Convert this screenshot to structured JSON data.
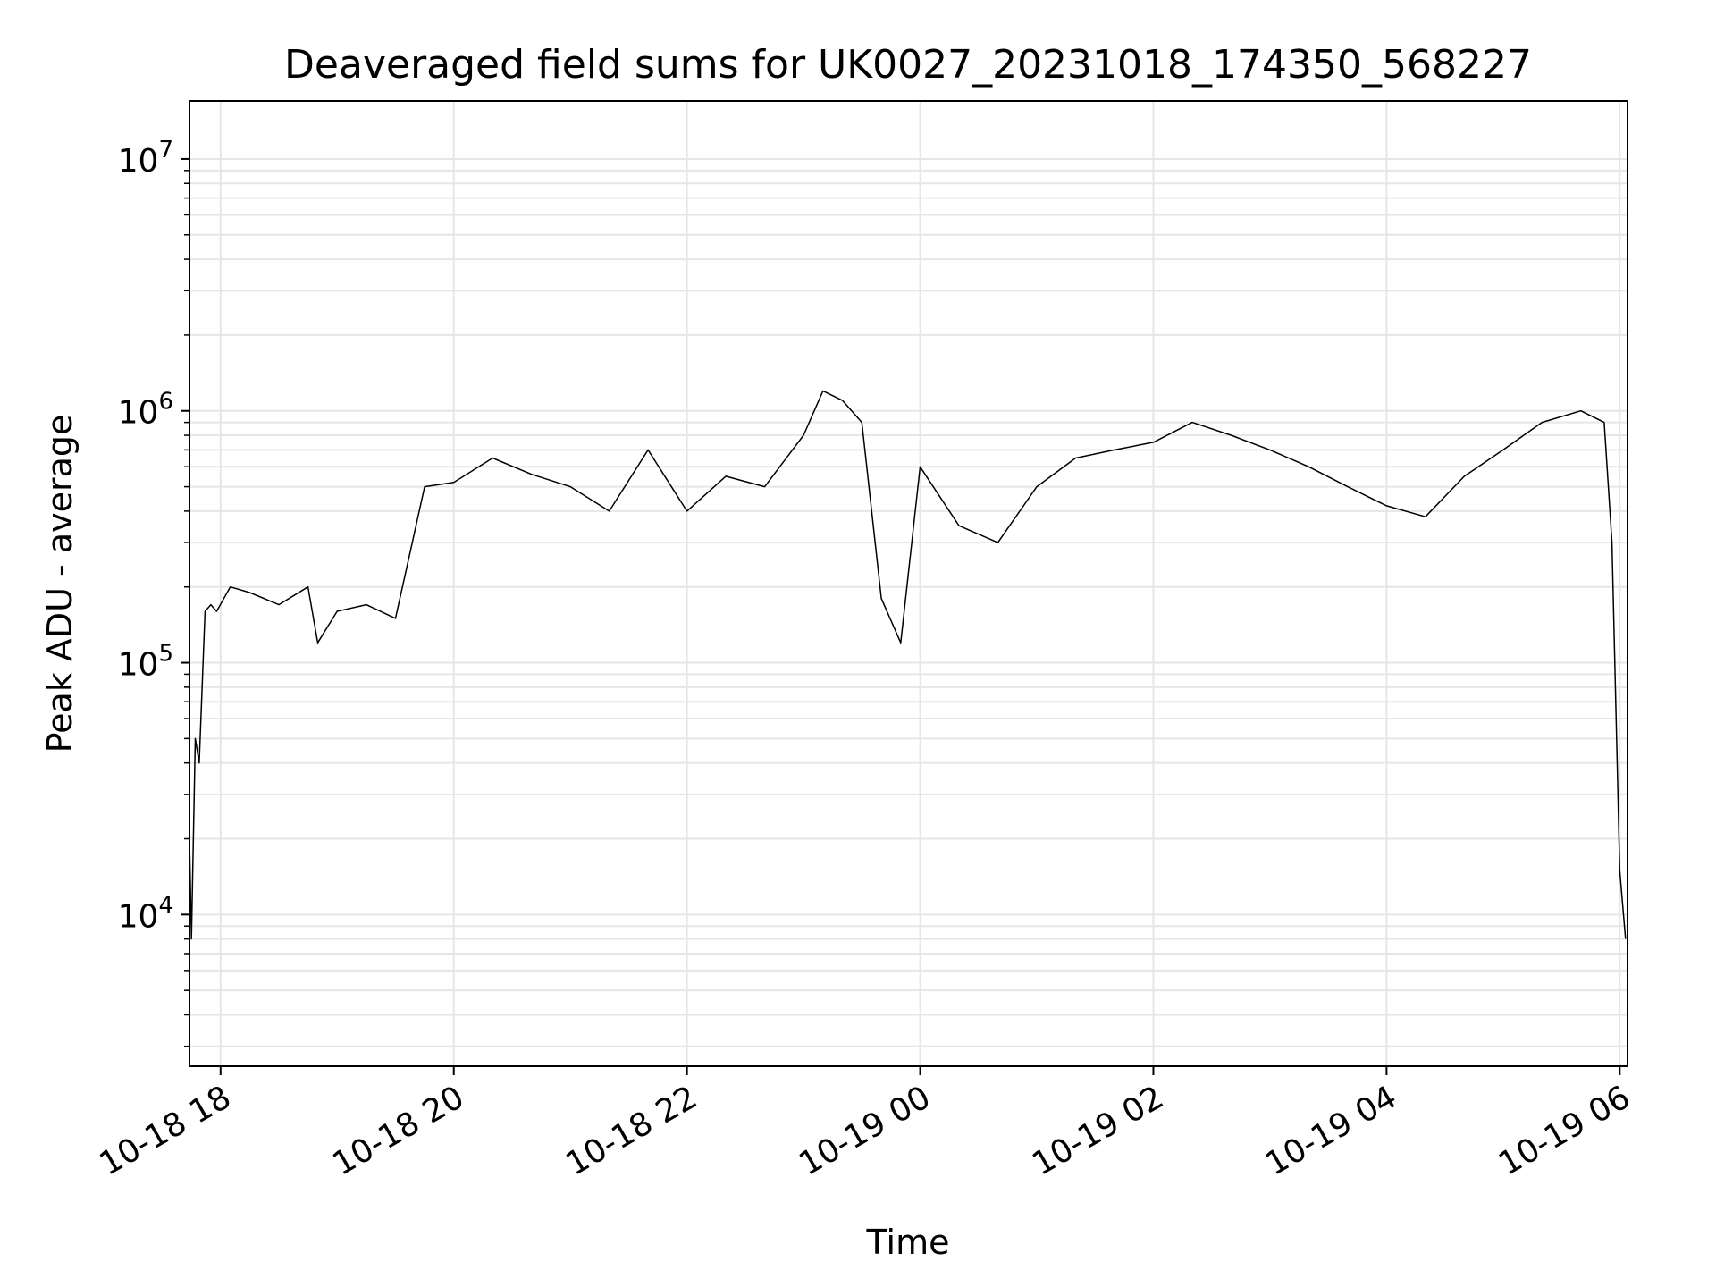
{
  "chart_data": {
    "type": "line",
    "title": "Deaveraged field sums for UK0027_20231018_174350_568227",
    "xlabel": "Time",
    "ylabel": "Peak ADU - average",
    "x_type": "datetime",
    "xlim": [
      "2023-10-18 17:44",
      "2023-10-19 06:04"
    ],
    "ylim": [
      2500,
      17000000
    ],
    "yscale": "log",
    "x_ticks": [
      {
        "value": "2023-10-18 18:00",
        "label": "10-18 18"
      },
      {
        "value": "2023-10-18 20:00",
        "label": "10-18 20"
      },
      {
        "value": "2023-10-18 22:00",
        "label": "10-18 22"
      },
      {
        "value": "2023-10-19 00:00",
        "label": "10-19 00"
      },
      {
        "value": "2023-10-19 02:00",
        "label": "10-19 02"
      },
      {
        "value": "2023-10-19 04:00",
        "label": "10-19 04"
      },
      {
        "value": "2023-10-19 06:00",
        "label": "10-19 06"
      }
    ],
    "y_ticks": [
      {
        "value": 10000,
        "base": "10",
        "exp": "4"
      },
      {
        "value": 100000,
        "base": "10",
        "exp": "5"
      },
      {
        "value": 1000000,
        "base": "10",
        "exp": "6"
      },
      {
        "value": 10000000,
        "base": "10",
        "exp": "7"
      }
    ],
    "grid": true,
    "line_color": "#000000",
    "grid_color": "#e6e6e6",
    "series": [
      {
        "x": [
          "2023-10-18 17:44",
          "2023-10-18 17:45",
          "2023-10-18 17:47",
          "2023-10-18 17:49",
          "2023-10-18 17:52",
          "2023-10-18 17:55",
          "2023-10-18 17:58",
          "2023-10-18 18:05",
          "2023-10-18 18:15",
          "2023-10-18 18:30",
          "2023-10-18 18:45",
          "2023-10-18 18:50",
          "2023-10-18 19:00",
          "2023-10-18 19:15",
          "2023-10-18 19:30",
          "2023-10-18 19:45",
          "2023-10-18 20:00",
          "2023-10-18 20:20",
          "2023-10-18 20:40",
          "2023-10-18 21:00",
          "2023-10-18 21:20",
          "2023-10-18 21:40",
          "2023-10-18 22:00",
          "2023-10-18 22:20",
          "2023-10-18 22:40",
          "2023-10-18 23:00",
          "2023-10-18 23:10",
          "2023-10-18 23:20",
          "2023-10-18 23:30",
          "2023-10-18 23:40",
          "2023-10-18 23:50",
          "2023-10-19 00:00",
          "2023-10-19 00:20",
          "2023-10-19 00:40",
          "2023-10-19 01:00",
          "2023-10-19 01:20",
          "2023-10-19 01:40",
          "2023-10-19 02:00",
          "2023-10-19 02:20",
          "2023-10-19 02:40",
          "2023-10-19 03:00",
          "2023-10-19 03:20",
          "2023-10-19 03:40",
          "2023-10-19 04:00",
          "2023-10-19 04:20",
          "2023-10-19 04:40",
          "2023-10-19 05:00",
          "2023-10-19 05:20",
          "2023-10-19 05:40",
          "2023-10-19 05:52",
          "2023-10-19 05:56",
          "2023-10-19 06:00",
          "2023-10-19 06:03"
        ],
        "y": [
          20000,
          8000,
          50000,
          40000,
          160000,
          170000,
          160000,
          200000,
          190000,
          170000,
          200000,
          120000,
          160000,
          170000,
          150000,
          500000,
          520000,
          650000,
          560000,
          500000,
          400000,
          700000,
          400000,
          550000,
          500000,
          800000,
          1200000,
          1100000,
          900000,
          180000,
          120000,
          600000,
          350000,
          300000,
          500000,
          650000,
          700000,
          750000,
          900000,
          800000,
          700000,
          600000,
          500000,
          420000,
          380000,
          550000,
          700000,
          900000,
          1000000,
          900000,
          300000,
          15000,
          8000
        ]
      }
    ]
  }
}
